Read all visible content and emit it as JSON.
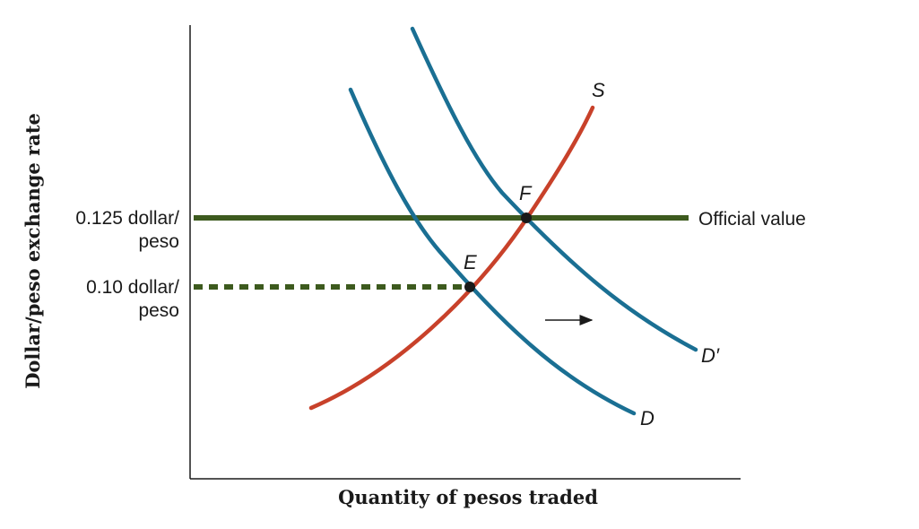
{
  "chart_data": {
    "type": "line",
    "title": "",
    "xlabel": "Quantity of pesos traded",
    "ylabel": "Dollar/peso exchange rate",
    "ytick_labels": [
      {
        "line1": "0.125 dollar/",
        "line2": "peso",
        "value": 0.125
      },
      {
        "line1": "0.10 dollar/",
        "line2": "peso",
        "value": 0.1
      }
    ],
    "series": [
      {
        "name": "S",
        "color": "#c8412a"
      },
      {
        "name": "D",
        "color": "#1a6f93"
      },
      {
        "name": "D′",
        "color": "#1a6f93"
      }
    ],
    "reference_lines": [
      {
        "label": "Official value",
        "value": 0.125,
        "style": "solid",
        "color": "#3d5a1e"
      },
      {
        "label": "",
        "value": 0.1,
        "style": "dashed",
        "color": "#3d5a1e"
      }
    ],
    "points": [
      {
        "label": "E",
        "description": "intersection of S and D"
      },
      {
        "label": "F",
        "description": "intersection of S and D′"
      }
    ],
    "annotation": "arrow pointing right (demand shift)",
    "grid": false
  }
}
